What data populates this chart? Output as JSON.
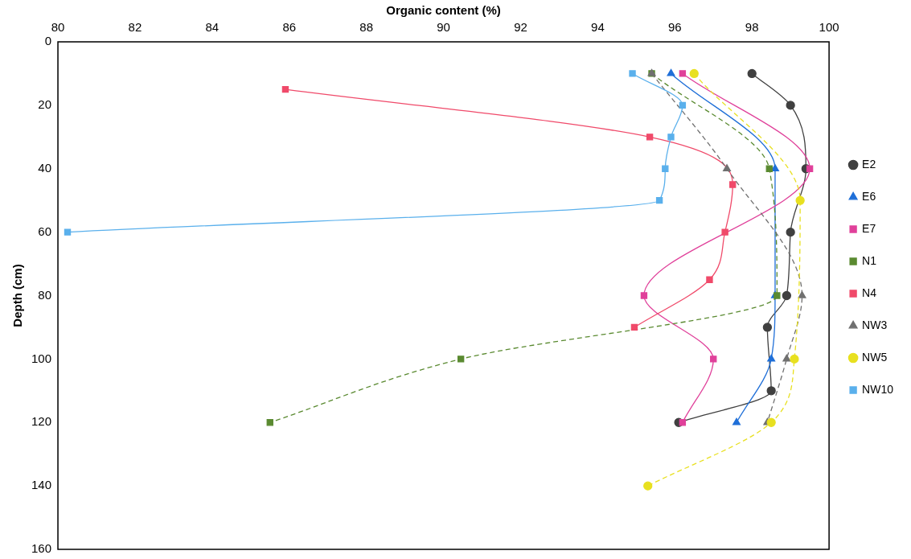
{
  "chart_data": {
    "type": "line",
    "xlabel": "Organic content (%)",
    "ylabel": "Depth (cm)",
    "xlim": [
      80,
      100
    ],
    "xticks": [
      80,
      82,
      84,
      86,
      88,
      90,
      92,
      94,
      96,
      98,
      100
    ],
    "ylim": [
      160,
      0
    ],
    "yticks": [
      0,
      20,
      40,
      60,
      80,
      100,
      120,
      140,
      160
    ],
    "grid": false,
    "legend": "right",
    "series": [
      {
        "name": "E2",
        "color": "#404040",
        "marker": "circle",
        "line_style": "solid",
        "x": [
          98.0,
          99.0,
          99.4,
          99.0,
          98.9,
          98.4,
          98.5,
          96.1
        ],
        "values": [
          10,
          20,
          40,
          60,
          80,
          90,
          110,
          120
        ]
      },
      {
        "name": "E6",
        "color": "#1f6fd8",
        "marker": "triangle",
        "line_style": "solid",
        "x": [
          95.9,
          98.6,
          98.6,
          98.5,
          97.6
        ],
        "values": [
          10,
          40,
          80,
          100,
          120
        ]
      },
      {
        "name": "E7",
        "color": "#e0409a",
        "marker": "square",
        "line_style": "solid",
        "x": [
          96.2,
          99.5,
          95.2,
          97.0,
          96.2
        ],
        "values": [
          10,
          40,
          80,
          100,
          120
        ]
      },
      {
        "name": "N1",
        "color": "#5a8a30",
        "marker": "square",
        "line_style": "dashed",
        "x": [
          95.4,
          98.45,
          98.65,
          90.45,
          85.5
        ],
        "values": [
          10,
          40,
          80,
          100,
          120
        ]
      },
      {
        "name": "N4",
        "color": "#f04a6a",
        "marker": "square",
        "line_style": "solid",
        "x": [
          85.9,
          95.35,
          97.5,
          97.3,
          96.9,
          94.95
        ],
        "values": [
          15,
          30,
          45,
          60,
          75,
          90
        ]
      },
      {
        "name": "NW3",
        "color": "#707070",
        "marker": "triangle",
        "line_style": "dashed",
        "x": [
          95.4,
          97.35,
          99.3,
          98.9,
          98.4
        ],
        "values": [
          10,
          40,
          80,
          100,
          120
        ]
      },
      {
        "name": "NW5",
        "color": "#e8e020",
        "marker": "circle",
        "line_style": "dashed",
        "x": [
          96.5,
          99.25,
          99.1,
          98.5,
          95.3
        ],
        "values": [
          10,
          50,
          100,
          120,
          140
        ]
      },
      {
        "name": "NW10",
        "color": "#5ab0ec",
        "marker": "square",
        "line_style": "solid",
        "x": [
          94.9,
          96.2,
          95.9,
          95.75,
          95.6,
          80.25
        ],
        "values": [
          10,
          20,
          30,
          40,
          50,
          60
        ]
      }
    ]
  }
}
